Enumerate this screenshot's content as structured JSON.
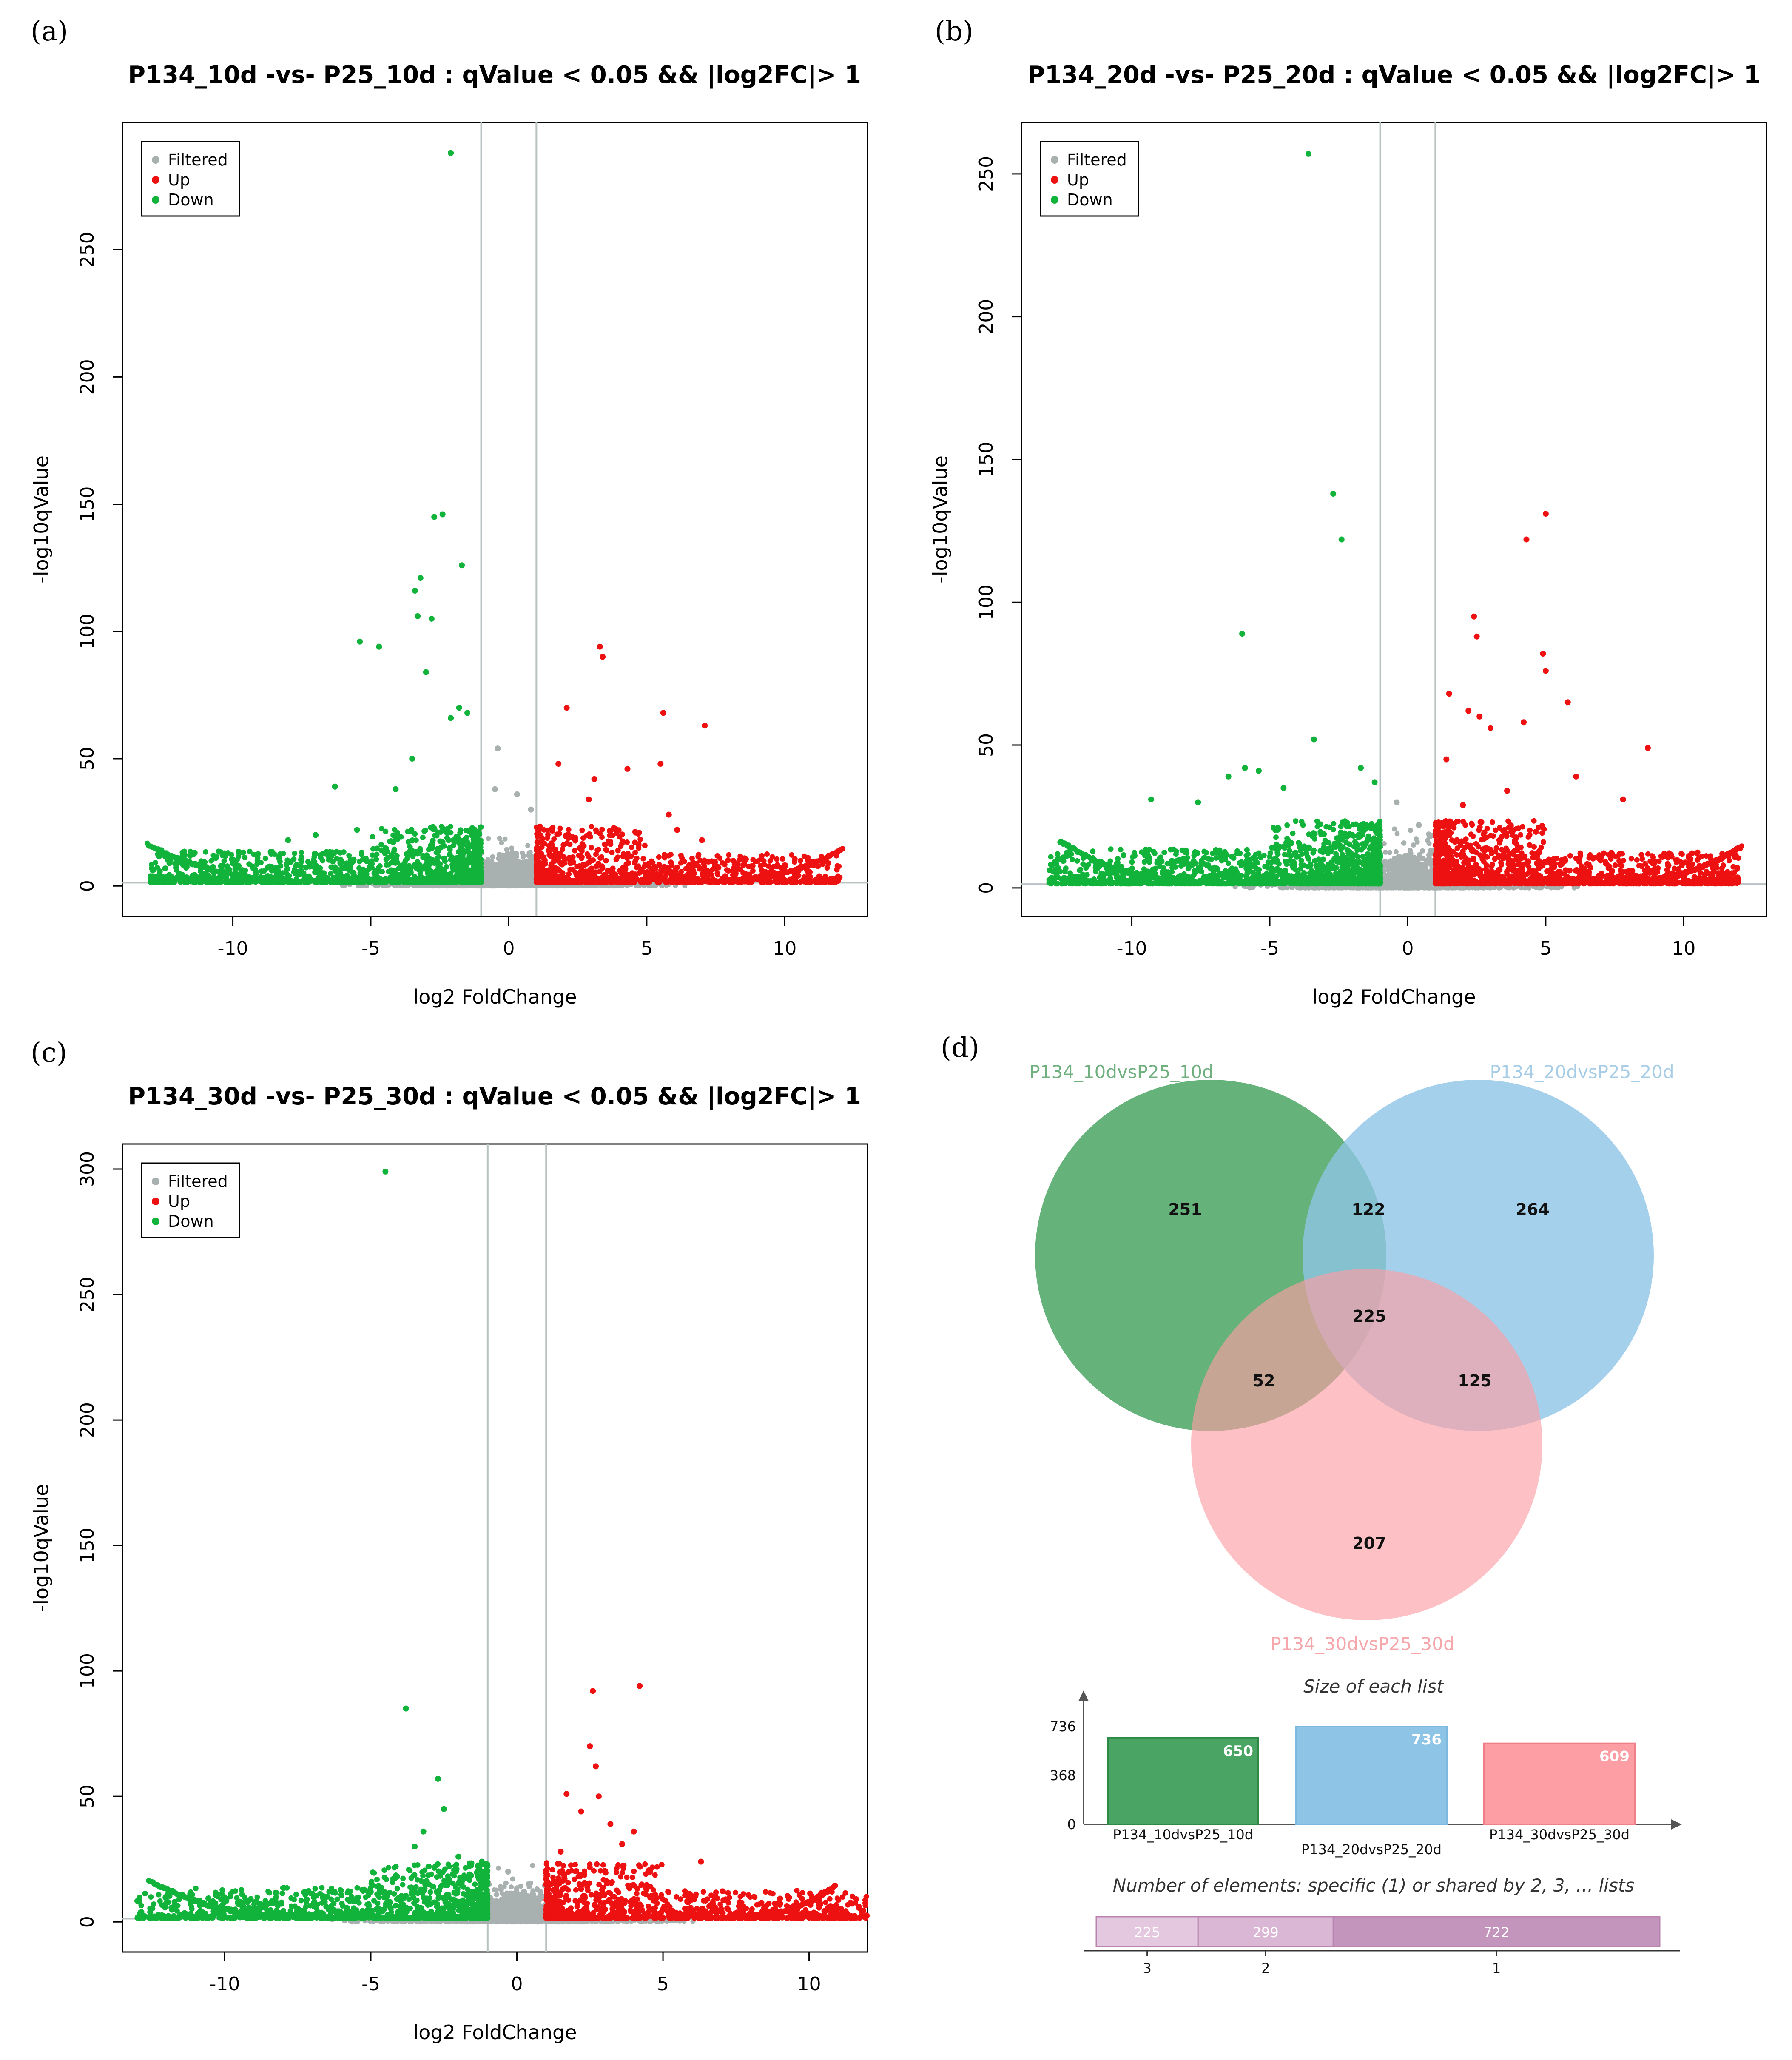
{
  "colors": {
    "filtered": "#a8b0b0",
    "up": "#ee1111",
    "down": "#11b33a",
    "venn_a": "#4aa463",
    "venn_b": "#8ec4e6",
    "venn_c": "#fc9ea4",
    "shared_bar": "#c89ac0"
  },
  "chart_data": [
    {
      "type": "scatter",
      "panel_label": "(a)",
      "title": "P134_10d -vs- P25_10d : qValue < 0.05 && |log2FC|> 1",
      "xlabel": "log2 FoldChange",
      "ylabel": "-log10qValue",
      "xlim": [
        -14,
        13
      ],
      "ylim": [
        -12,
        300
      ],
      "xticks": [
        -10,
        -5,
        0,
        5,
        10
      ],
      "yticks": [
        0,
        50,
        100,
        150,
        200,
        250
      ],
      "vlines": [
        -1,
        1
      ],
      "hline": 1.3,
      "legend": [
        "Filtered",
        "Up",
        "Down"
      ],
      "legend_position": "top-left",
      "series": [
        {
          "name": "Down",
          "points": [
            [
              -2.1,
              288
            ],
            [
              -2.4,
              146
            ],
            [
              -2.7,
              145
            ],
            [
              -3.2,
              121
            ],
            [
              -3.4,
              116
            ],
            [
              -1.7,
              126
            ],
            [
              -3.3,
              106
            ],
            [
              -2.8,
              105
            ],
            [
              -5.4,
              96
            ],
            [
              -4.7,
              94
            ],
            [
              -3,
              84
            ],
            [
              -1.8,
              70
            ],
            [
              -1.5,
              68
            ],
            [
              -2.1,
              66
            ],
            [
              -3.5,
              50
            ],
            [
              -6.3,
              39
            ],
            [
              -4.1,
              38
            ],
            [
              -7,
              20
            ],
            [
              -8,
              18
            ],
            [
              -5.5,
              22
            ]
          ]
        },
        {
          "name": "Up",
          "points": [
            [
              3.3,
              94
            ],
            [
              3.4,
              90
            ],
            [
              2.1,
              70
            ],
            [
              5.6,
              68
            ],
            [
              7.1,
              63
            ],
            [
              5.5,
              48
            ],
            [
              1.8,
              48
            ],
            [
              4.3,
              46
            ],
            [
              3.1,
              42
            ],
            [
              5.8,
              28
            ],
            [
              6.1,
              22
            ],
            [
              7,
              18
            ],
            [
              2.9,
              34
            ]
          ]
        },
        {
          "name": "Filtered",
          "points": [
            [
              -0.4,
              54
            ],
            [
              -0.5,
              38
            ],
            [
              0.3,
              36
            ],
            [
              0.8,
              30
            ]
          ]
        }
      ]
    },
    {
      "type": "scatter",
      "panel_label": "(b)",
      "title": "P134_20d -vs- P25_20d : qValue < 0.05 && |log2FC|> 1",
      "xlabel": "log2 FoldChange",
      "ylabel": "-log10qValue",
      "xlim": [
        -14,
        13
      ],
      "ylim": [
        -10,
        268
      ],
      "xticks": [
        -10,
        -5,
        0,
        5,
        10
      ],
      "yticks": [
        0,
        50,
        100,
        150,
        200,
        250
      ],
      "vlines": [
        -1,
        1
      ],
      "hline": 1.3,
      "legend": [
        "Filtered",
        "Up",
        "Down"
      ],
      "legend_position": "top-left",
      "series": [
        {
          "name": "Down",
          "points": [
            [
              -3.6,
              257
            ],
            [
              -2.7,
              138
            ],
            [
              -2.4,
              122
            ],
            [
              -6,
              89
            ],
            [
              -3.4,
              52
            ],
            [
              -5.9,
              42
            ],
            [
              -5.4,
              41
            ],
            [
              -6.5,
              39
            ],
            [
              -1.7,
              42
            ],
            [
              -1.2,
              37
            ],
            [
              -9.3,
              31
            ],
            [
              -7.6,
              30
            ],
            [
              -4.5,
              35
            ]
          ]
        },
        {
          "name": "Up",
          "points": [
            [
              5,
              131
            ],
            [
              4.3,
              122
            ],
            [
              2.4,
              95
            ],
            [
              2.5,
              88
            ],
            [
              4.9,
              82
            ],
            [
              5,
              76
            ],
            [
              1.5,
              68
            ],
            [
              5.8,
              65
            ],
            [
              2.2,
              62
            ],
            [
              2.6,
              60
            ],
            [
              4.2,
              58
            ],
            [
              3,
              56
            ],
            [
              8.7,
              49
            ],
            [
              1.4,
              45
            ],
            [
              6.1,
              39
            ],
            [
              7.8,
              31
            ],
            [
              3.6,
              34
            ],
            [
              2,
              29
            ]
          ]
        },
        {
          "name": "Filtered",
          "points": [
            [
              -0.4,
              30
            ],
            [
              0.4,
              22
            ],
            [
              0.8,
              18
            ]
          ]
        }
      ]
    },
    {
      "type": "scatter",
      "panel_label": "(c)",
      "title": "P134_30d -vs- P25_30d : qValue < 0.05 && |log2FC|> 1",
      "xlabel": "log2 FoldChange",
      "ylabel": "-log10qValue",
      "xlim": [
        -13.5,
        12
      ],
      "ylim": [
        -12,
        310
      ],
      "xticks": [
        -10,
        -5,
        0,
        5,
        10
      ],
      "yticks": [
        0,
        50,
        100,
        150,
        200,
        250,
        300
      ],
      "vlines": [
        -1,
        1
      ],
      "hline": 1.3,
      "legend": [
        "Filtered",
        "Up",
        "Down"
      ],
      "legend_position": "top-left",
      "series": [
        {
          "name": "Down",
          "points": [
            [
              -4.5,
              299
            ],
            [
              -3.8,
              85
            ],
            [
              -2.7,
              57
            ],
            [
              -2.5,
              45
            ],
            [
              -3.2,
              36
            ],
            [
              -3.5,
              30
            ],
            [
              -2,
              26
            ],
            [
              -1.2,
              24
            ],
            [
              -4.1,
              18
            ],
            [
              -5,
              12
            ]
          ]
        },
        {
          "name": "Up",
          "points": [
            [
              4.2,
              94
            ],
            [
              2.6,
              92
            ],
            [
              2.5,
              70
            ],
            [
              2.7,
              62
            ],
            [
              1.7,
              51
            ],
            [
              2.8,
              50
            ],
            [
              2.2,
              44
            ],
            [
              3.2,
              39
            ],
            [
              4,
              36
            ],
            [
              3.6,
              31
            ],
            [
              1.5,
              28
            ],
            [
              6.3,
              24
            ],
            [
              4.5,
              20
            ]
          ]
        },
        {
          "name": "Filtered",
          "points": [
            [
              -0.3,
              20
            ],
            [
              0.4,
              15
            ],
            [
              0.8,
              12
            ]
          ]
        }
      ]
    },
    {
      "type": "venn",
      "panel_label": "(d)",
      "sets": [
        "P134_10dvsP25_10d",
        "P134_20dvsP25_20d",
        "P134_30dvsP25_30d"
      ],
      "regions": {
        "A": 251,
        "AB": 122,
        "B": 264,
        "ABC": 225,
        "AC": 52,
        "BC": 125,
        "C": 207
      }
    },
    {
      "type": "bar",
      "title": "Size of each list",
      "categories": [
        "P134_10dvsP25_10d",
        "P134_20dvsP25_20d",
        "P134_30dvsP25_30d"
      ],
      "values": [
        650,
        736,
        609
      ],
      "yticks": [
        0,
        368,
        736
      ]
    },
    {
      "type": "bar",
      "orientation": "stacked-horizontal",
      "title": "Number of elements: specific (1) or shared by 2, 3, ... lists",
      "categories": [
        "3",
        "2",
        "1"
      ],
      "values": [
        225,
        299,
        722
      ]
    }
  ]
}
